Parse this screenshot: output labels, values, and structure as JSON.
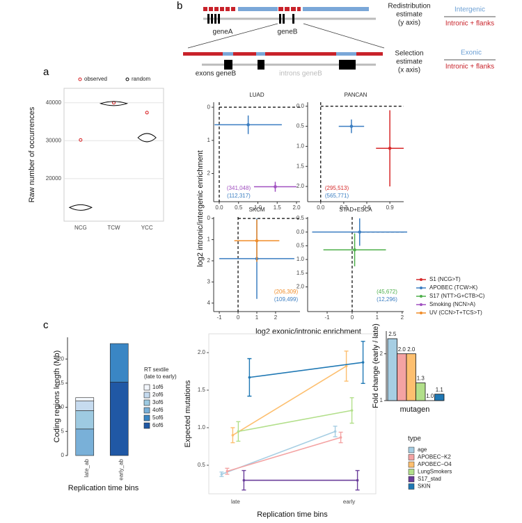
{
  "panel_labels": [
    "a",
    "b",
    "c"
  ],
  "diagram": {
    "gene_a": "geneA",
    "gene_b": "geneB",
    "exons": "exons geneB",
    "introns": "introns geneB",
    "redistribution": [
      "Redistribution",
      "estimate",
      "(y axis)"
    ],
    "redistribution_num": "Intergenic",
    "redistribution_den": "Intronic + flanks",
    "selection": [
      "Selection",
      "estimate",
      "(x axis)"
    ],
    "selection_num": "Exonic",
    "selection_den": "Intronic + flanks"
  },
  "chart_data": [
    {
      "type": "violin_point",
      "ylabel": "Raw number of occurrences",
      "categories": [
        "NCG",
        "TCW",
        "YCC"
      ],
      "series": [
        {
          "name": "observed",
          "color": "#d7191c",
          "shape": "circle",
          "values": [
            30200,
            40000,
            37400
          ]
        },
        {
          "name": "random",
          "color": "#000000",
          "shape": "violin",
          "values": [
            12400,
            39800,
            30800
          ]
        }
      ],
      "ylim": [
        8800,
        43800
      ],
      "yticks": [
        20000,
        30000,
        40000
      ],
      "grid": true
    },
    {
      "type": "errorpoint",
      "xlabel": "log2 exonic/intronic enrichment",
      "ylabel": "log2 intronic/intergenic enrichment",
      "y_reversed": true,
      "series": [
        {
          "name": "S1 (NCG>T)",
          "color": "#d62728"
        },
        {
          "name": "APOBEC (TCW>K)",
          "color": "#3a7dc1"
        },
        {
          "name": "S17 (NTT>G+CTB>C)",
          "color": "#4daf4a"
        },
        {
          "name": "Smoking (NCN>A)",
          "color": "#a050c0"
        },
        {
          "name": "UV (CCN>T+TCS>T)",
          "color": "#f08c28"
        }
      ],
      "facets": [
        {
          "title": "LUAD",
          "xlim": [
            -0.144,
            2.09
          ],
          "xticks": [
            {
              "value": 0,
              "label": "0.0"
            },
            0.5,
            {
              "value": 1,
              "label": "1.0"
            },
            1.5,
            {
              "value": 2,
              "label": "2.0"
            }
          ],
          "ylim": [
            -0.15,
            2.85
          ],
          "yticks": [
            0,
            1,
            2
          ],
          "points": [
            {
              "series": 1,
              "x": 0.75,
              "y": 0.53,
              "xerr": 0.87,
              "yerr": 0.28
            },
            {
              "series": 3,
              "x": 1.45,
              "y": 2.4,
              "xerr": 0.55,
              "yerr": 0.15
            }
          ],
          "annotations": [
            {
              "text": "(341,048)",
              "color": "#a050c0"
            },
            {
              "text": "(112,317)",
              "color": "#3a7dc1"
            }
          ]
        },
        {
          "title": "PANCAN",
          "xlim": [
            -0.17,
            1.08
          ],
          "xticks": [
            {
              "value": 0,
              "label": "0.0"
            },
            0.3,
            0.6,
            0.9
          ],
          "ylim": [
            -0.1,
            2.38
          ],
          "yticks": [
            {
              "value": 0,
              "label": "0.0"
            },
            0.5,
            {
              "value": 1,
              "label": "1.0"
            },
            1.5,
            {
              "value": 2,
              "label": "2.0"
            }
          ],
          "points": [
            {
              "series": 1,
              "x": 0.4,
              "y": 0.5,
              "xerr": 0.165,
              "yerr": 0.17
            },
            {
              "series": 0,
              "x": 0.9,
              "y": 1.05,
              "xerr": 0.18,
              "yerr": 0.95
            }
          ],
          "annotations": [
            {
              "text": "(295,513)",
              "color": "#d62728"
            },
            {
              "text": "(565,771)",
              "color": "#3a7dc1"
            }
          ]
        },
        {
          "title": "SKCM",
          "xlim": [
            -1.3,
            3.3
          ],
          "xticks": [
            -1,
            0,
            1,
            2
          ],
          "ylim": [
            -0.07,
            4.4
          ],
          "yticks": [
            0,
            1,
            2,
            3,
            4
          ],
          "points": [
            {
              "series": 1,
              "x": 1.0,
              "y": 1.9,
              "xerr": 2.0,
              "yerr": 1.9
            },
            {
              "series": 4,
              "x": 1.0,
              "y": 1.05,
              "xerr": 1.2,
              "yerr": 1.0
            }
          ],
          "annotations": [
            {
              "text": "(206,309)",
              "color": "#f08c28"
            },
            {
              "text": "(109,499)",
              "color": "#3a7dc1"
            }
          ]
        },
        {
          "title": "STAD+ESCA",
          "xlim": [
            -1.78,
            2.06
          ],
          "xticks": [
            -1,
            0,
            1,
            2
          ],
          "ylim": [
            -0.55,
            2.9
          ],
          "yticks": [
            -0.5,
            {
              "value": 0,
              "label": "0.0"
            },
            0.5,
            {
              "value": 1,
              "label": "1.0"
            },
            1.5,
            {
              "value": 2,
              "label": "2.0"
            }
          ],
          "points": [
            {
              "series": 1,
              "x": 0.3,
              "y": 0.0,
              "xerr": 1.9,
              "yerr": 0.5
            },
            {
              "series": 2,
              "x": 0.1,
              "y": 0.65,
              "xerr": 1.25,
              "yerr": 0.6
            }
          ],
          "annotations": [
            {
              "text": "(45,672)",
              "color": "#4daf4a"
            },
            {
              "text": "(12,296)",
              "color": "#3a7dc1"
            }
          ]
        }
      ]
    },
    {
      "type": "stacked_bar",
      "ylabel": "Coding regions length (Mb)",
      "xlabel": "Replication time bins",
      "legend_title": [
        "RT sextile",
        "(late to early)"
      ],
      "categories": [
        "late_ab",
        "early_ab"
      ],
      "series": [
        {
          "name": "1of6",
          "color": "#f2f6fc",
          "values": [
            0.7,
            null
          ]
        },
        {
          "name": "2of6",
          "color": "#c6dbef",
          "values": [
            2.0,
            null
          ]
        },
        {
          "name": "3of6",
          "color": "#9ecae1",
          "values": [
            3.8,
            null
          ]
        },
        {
          "name": "4of6",
          "color": "#79b0d8",
          "values": [
            5.5,
            null
          ]
        },
        {
          "name": "5of6",
          "color": "#3a86c4",
          "values": [
            null,
            8.0
          ]
        },
        {
          "name": "6of6",
          "color": "#2058a5",
          "values": [
            null,
            15.2
          ]
        }
      ],
      "ylim": [
        0,
        24.5
      ],
      "yticks": [
        0,
        5,
        10,
        15,
        20
      ]
    },
    {
      "type": "line_errorbar",
      "ylabel": "Expected mutations",
      "xlabel": "Replication time bins",
      "legend_title": "type",
      "categories": [
        "late",
        "early"
      ],
      "series": [
        {
          "name": "age",
          "color": "#a6cee3",
          "values": [
            0.38,
            0.95
          ],
          "errors": [
            0.03,
            0.07
          ]
        },
        {
          "name": "APOBEC−K2",
          "color": "#f4a3a3",
          "values": [
            0.42,
            0.87
          ],
          "errors": [
            0.04,
            0.07
          ]
        },
        {
          "name": "APOBEC−O4",
          "color": "#fdbf6f",
          "values": [
            0.9,
            1.82
          ],
          "errors": [
            0.1,
            0.2
          ]
        },
        {
          "name": "LungSmokers",
          "color": "#b2df8a",
          "values": [
            0.95,
            1.23
          ],
          "errors": [
            0.13,
            0.17
          ]
        },
        {
          "name": "S17_stad",
          "color": "#6a3d9a",
          "values": [
            0.3,
            0.3
          ],
          "errors": [
            0.13,
            0.13
          ]
        },
        {
          "name": "SKIN",
          "color": "#1f78b4",
          "values": [
            1.67,
            1.87
          ],
          "errors": [
            0.25,
            0.28
          ]
        }
      ],
      "ylim": [
        0.12,
        2.25
      ],
      "yticks": [
        0.5,
        {
          "value": 1,
          "label": "1.0"
        },
        1.5,
        {
          "value": 2,
          "label": "2.0"
        }
      ]
    },
    {
      "type": "bar",
      "ylabel": "Fold change (early / late)",
      "xlabel": "mutagen",
      "values": [
        2.5,
        2.0,
        2.0,
        1.3,
        1.0,
        1.1
      ],
      "value_labels": [
        "2.5",
        "2.0",
        "2.0",
        "1.3",
        "1.0",
        "1.1"
      ],
      "colors": [
        "#a6cee3",
        "#f4a3a3",
        "#fdbf6f",
        "#b2df8a",
        "#6a3d9a",
        "#1f78b4"
      ],
      "log_scale": true,
      "ylim": [
        1,
        2.8
      ],
      "yticks": [
        1,
        2
      ]
    }
  ]
}
